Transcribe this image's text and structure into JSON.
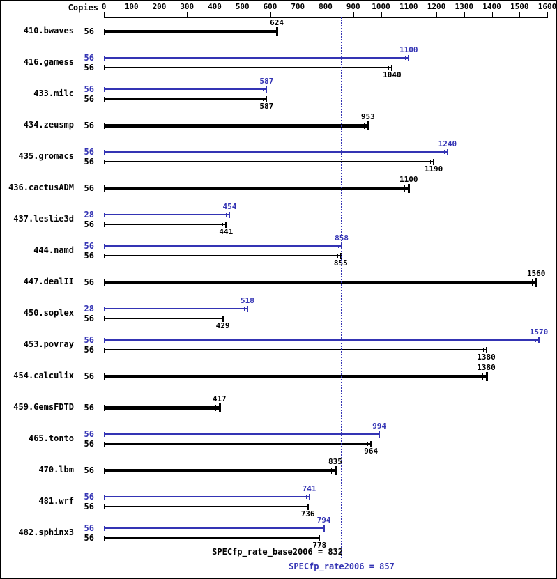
{
  "header": {
    "copies_label": "Copies"
  },
  "footer": {
    "base_label": "SPECfp_rate_base2006 = 832",
    "peak_label": "SPECfp_rate2006 = 857"
  },
  "colors": {
    "peak_blue": "#3434b4",
    "base_black": "#000000",
    "background": "#ffffff"
  },
  "chart_data": {
    "type": "bar",
    "orientation": "horizontal",
    "title": "",
    "x_axis": {
      "min": 0,
      "max": 1600,
      "ticks": [
        0,
        100,
        200,
        300,
        400,
        500,
        600,
        700,
        800,
        900,
        1000,
        1100,
        1200,
        1300,
        1400,
        1500,
        1600
      ]
    },
    "grid": false,
    "legend": false,
    "reference_line": {
      "metric": "SPECfp_rate2006",
      "value": 857,
      "style": "dotted"
    },
    "summary": {
      "SPECfp_rate_base2006": 832,
      "SPECfp_rate2006": 857
    },
    "groups": [
      {
        "name": "410.bwaves",
        "bars": [
          {
            "series": "base",
            "copies": 56,
            "value": 624,
            "bold": true
          }
        ]
      },
      {
        "name": "416.gamess",
        "bars": [
          {
            "series": "peak",
            "copies": 56,
            "value": 1100
          },
          {
            "series": "base",
            "copies": 56,
            "value": 1040
          }
        ]
      },
      {
        "name": "433.milc",
        "bars": [
          {
            "series": "peak",
            "copies": 56,
            "value": 587
          },
          {
            "series": "base",
            "copies": 56,
            "value": 587
          }
        ]
      },
      {
        "name": "434.zeusmp",
        "bars": [
          {
            "series": "base",
            "copies": 56,
            "value": 953,
            "bold": true
          }
        ]
      },
      {
        "name": "435.gromacs",
        "bars": [
          {
            "series": "peak",
            "copies": 56,
            "value": 1240
          },
          {
            "series": "base",
            "copies": 56,
            "value": 1190
          }
        ]
      },
      {
        "name": "436.cactusADM",
        "bars": [
          {
            "series": "base",
            "copies": 56,
            "value": 1100,
            "bold": true
          }
        ]
      },
      {
        "name": "437.leslie3d",
        "bars": [
          {
            "series": "peak",
            "copies": 28,
            "value": 454
          },
          {
            "series": "base",
            "copies": 56,
            "value": 441
          }
        ]
      },
      {
        "name": "444.namd",
        "bars": [
          {
            "series": "peak",
            "copies": 56,
            "value": 858
          },
          {
            "series": "base",
            "copies": 56,
            "value": 855
          }
        ]
      },
      {
        "name": "447.dealII",
        "bars": [
          {
            "series": "base",
            "copies": 56,
            "value": 1560,
            "bold": true
          }
        ]
      },
      {
        "name": "450.soplex",
        "bars": [
          {
            "series": "peak",
            "copies": 28,
            "value": 518
          },
          {
            "series": "base",
            "copies": 56,
            "value": 429
          }
        ]
      },
      {
        "name": "453.povray",
        "bars": [
          {
            "series": "peak",
            "copies": 56,
            "value": 1570
          },
          {
            "series": "base",
            "copies": 56,
            "value": 1380
          }
        ]
      },
      {
        "name": "454.calculix",
        "bars": [
          {
            "series": "base",
            "copies": 56,
            "value": 1380,
            "bold": true
          }
        ]
      },
      {
        "name": "459.GemsFDTD",
        "bars": [
          {
            "series": "base",
            "copies": 56,
            "value": 417,
            "bold": true
          }
        ]
      },
      {
        "name": "465.tonto",
        "bars": [
          {
            "series": "peak",
            "copies": 56,
            "value": 994
          },
          {
            "series": "base",
            "copies": 56,
            "value": 964
          }
        ]
      },
      {
        "name": "470.lbm",
        "bars": [
          {
            "series": "base",
            "copies": 56,
            "value": 835,
            "bold": true
          }
        ]
      },
      {
        "name": "481.wrf",
        "bars": [
          {
            "series": "peak",
            "copies": 56,
            "value": 741
          },
          {
            "series": "base",
            "copies": 56,
            "value": 736
          }
        ]
      },
      {
        "name": "482.sphinx3",
        "bars": [
          {
            "series": "peak",
            "copies": 56,
            "value": 794
          },
          {
            "series": "base",
            "copies": 56,
            "value": 778
          }
        ]
      }
    ]
  }
}
